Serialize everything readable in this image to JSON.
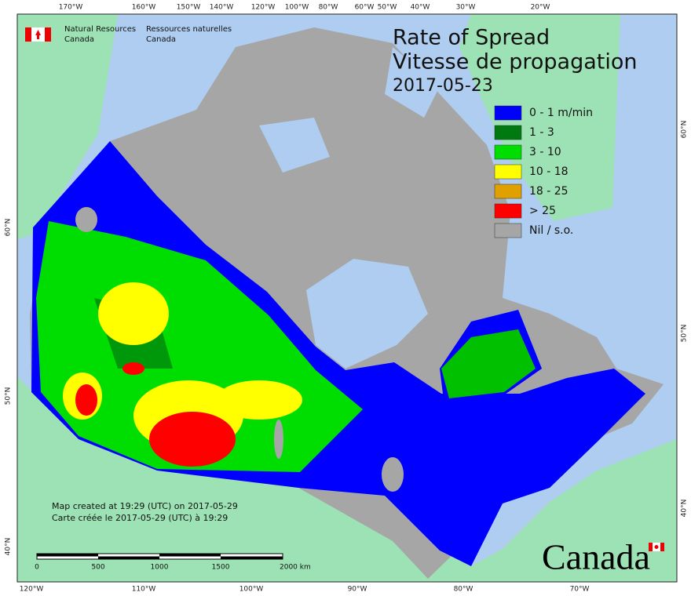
{
  "header": {
    "org_en": [
      "Natural Resources",
      "Canada"
    ],
    "org_fr": [
      "Ressources naturelles",
      "Canada"
    ]
  },
  "title": {
    "en": "Rate of Spread",
    "fr": "Vitesse de propagation",
    "date": "2017-05-23"
  },
  "legend": [
    {
      "label": "0 - 1 m/min",
      "color": "#0000ff"
    },
    {
      "label": "1 - 3",
      "color": "#007a10"
    },
    {
      "label": "3 - 10",
      "color": "#00dd00"
    },
    {
      "label": "10 - 18",
      "color": "#ffff00"
    },
    {
      "label": "18 - 25",
      "color": "#e0a000"
    },
    {
      "label": "> 25",
      "color": "#ff0000"
    },
    {
      "label": "Nil / s.o.",
      "color": "#a6a6a6"
    }
  ],
  "graticule": {
    "top": [
      "170°W",
      "160°W",
      "150°W",
      "140°W",
      "120°W",
      "100°W",
      "80°W",
      "60°W",
      "50°W",
      "40°W",
      "30°W",
      "20°W"
    ],
    "bottom": [
      "120°W",
      "110°W",
      "100°W",
      "90°W",
      "80°W",
      "70°W"
    ],
    "left": [
      "60°N",
      "50°N",
      "40°N"
    ],
    "right": [
      "60°N",
      "50°N",
      "40°N"
    ]
  },
  "notes": [
    "Map created at 19:29 (UTC) on 2017-05-29",
    "Carte créée le 2017-05-29 (UTC) à 19:29"
  ],
  "scale_bar": {
    "labels": [
      "0",
      "500",
      "1000",
      "1500",
      "2000 km"
    ]
  },
  "wordmark": "Canada"
}
